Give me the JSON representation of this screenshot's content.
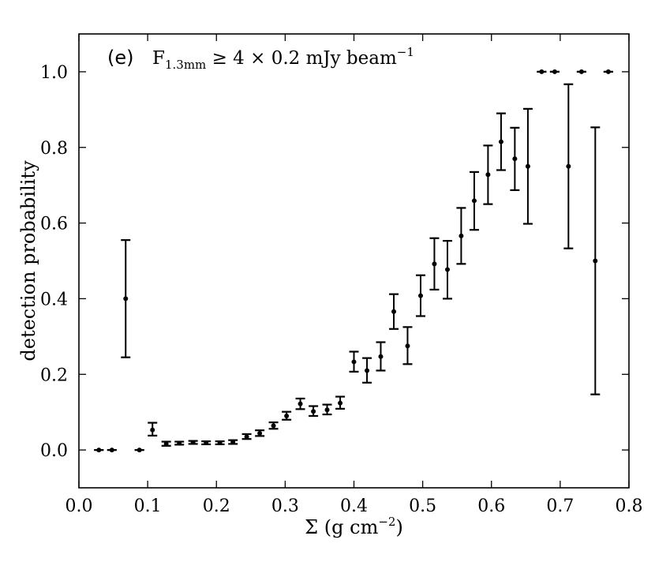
{
  "chart_data": {
    "type": "scatter",
    "panel_label": "(e)",
    "annotation": {
      "prefix": "F",
      "subscript": "1.3mm",
      "relation": " ≥ 4 × 0.2 mJy beam",
      "superscript": "−1"
    },
    "xlabel": "Σ (g cm",
    "xlabel_sup": "−2",
    "xlabel_suffix": ")",
    "ylabel": "detection probability",
    "xlim": [
      0.0,
      0.8
    ],
    "ylim": [
      -0.1,
      1.1
    ],
    "xticks": [
      0.0,
      0.1,
      0.2,
      0.3,
      0.4,
      0.5,
      0.6,
      0.7,
      0.8
    ],
    "xtick_labels": [
      "0.0",
      "0.1",
      "0.2",
      "0.3",
      "0.4",
      "0.5",
      "0.6",
      "0.7",
      "0.8"
    ],
    "yticks": [
      0.0,
      0.2,
      0.4,
      0.6,
      0.8,
      1.0
    ],
    "ytick_labels": [
      "0.0",
      "0.2",
      "0.4",
      "0.6",
      "0.8",
      "1.0"
    ],
    "grid": false,
    "points": [
      {
        "x": 0.029,
        "y": 0.0,
        "lo": 0.0,
        "hi": 0.0
      },
      {
        "x": 0.048,
        "y": 0.0,
        "lo": 0.0,
        "hi": 0.0
      },
      {
        "x": 0.068,
        "y": 0.4,
        "lo": 0.245,
        "hi": 0.555
      },
      {
        "x": 0.088,
        "y": 0.0,
        "lo": 0.0,
        "hi": 0.0
      },
      {
        "x": 0.107,
        "y": 0.053,
        "lo": 0.038,
        "hi": 0.072
      },
      {
        "x": 0.127,
        "y": 0.016,
        "lo": 0.011,
        "hi": 0.022
      },
      {
        "x": 0.146,
        "y": 0.018,
        "lo": 0.014,
        "hi": 0.022
      },
      {
        "x": 0.166,
        "y": 0.02,
        "lo": 0.016,
        "hi": 0.024
      },
      {
        "x": 0.185,
        "y": 0.019,
        "lo": 0.015,
        "hi": 0.023
      },
      {
        "x": 0.205,
        "y": 0.019,
        "lo": 0.015,
        "hi": 0.023
      },
      {
        "x": 0.224,
        "y": 0.021,
        "lo": 0.016,
        "hi": 0.026
      },
      {
        "x": 0.244,
        "y": 0.035,
        "lo": 0.029,
        "hi": 0.042
      },
      {
        "x": 0.263,
        "y": 0.044,
        "lo": 0.037,
        "hi": 0.052
      },
      {
        "x": 0.283,
        "y": 0.064,
        "lo": 0.056,
        "hi": 0.073
      },
      {
        "x": 0.302,
        "y": 0.09,
        "lo": 0.08,
        "hi": 0.101
      },
      {
        "x": 0.322,
        "y": 0.122,
        "lo": 0.108,
        "hi": 0.136
      },
      {
        "x": 0.341,
        "y": 0.102,
        "lo": 0.09,
        "hi": 0.116
      },
      {
        "x": 0.361,
        "y": 0.106,
        "lo": 0.094,
        "hi": 0.12
      },
      {
        "x": 0.38,
        "y": 0.124,
        "lo": 0.109,
        "hi": 0.141
      },
      {
        "x": 0.4,
        "y": 0.233,
        "lo": 0.207,
        "hi": 0.26
      },
      {
        "x": 0.419,
        "y": 0.21,
        "lo": 0.178,
        "hi": 0.243
      },
      {
        "x": 0.439,
        "y": 0.247,
        "lo": 0.21,
        "hi": 0.285
      },
      {
        "x": 0.458,
        "y": 0.366,
        "lo": 0.32,
        "hi": 0.412
      },
      {
        "x": 0.478,
        "y": 0.275,
        "lo": 0.227,
        "hi": 0.325
      },
      {
        "x": 0.497,
        "y": 0.408,
        "lo": 0.354,
        "hi": 0.462
      },
      {
        "x": 0.517,
        "y": 0.492,
        "lo": 0.424,
        "hi": 0.56
      },
      {
        "x": 0.536,
        "y": 0.477,
        "lo": 0.4,
        "hi": 0.553
      },
      {
        "x": 0.556,
        "y": 0.566,
        "lo": 0.492,
        "hi": 0.64
      },
      {
        "x": 0.575,
        "y": 0.659,
        "lo": 0.582,
        "hi": 0.735
      },
      {
        "x": 0.595,
        "y": 0.728,
        "lo": 0.65,
        "hi": 0.805
      },
      {
        "x": 0.614,
        "y": 0.815,
        "lo": 0.74,
        "hi": 0.89
      },
      {
        "x": 0.634,
        "y": 0.77,
        "lo": 0.687,
        "hi": 0.852
      },
      {
        "x": 0.653,
        "y": 0.75,
        "lo": 0.598,
        "hi": 0.902
      },
      {
        "x": 0.673,
        "y": 1.0,
        "lo": 1.0,
        "hi": 1.0
      },
      {
        "x": 0.692,
        "y": 1.0,
        "lo": 1.0,
        "hi": 1.0
      },
      {
        "x": 0.712,
        "y": 0.75,
        "lo": 0.533,
        "hi": 0.967
      },
      {
        "x": 0.731,
        "y": 1.0,
        "lo": 1.0,
        "hi": 1.0
      },
      {
        "x": 0.751,
        "y": 0.5,
        "lo": 0.147,
        "hi": 0.853
      },
      {
        "x": 0.77,
        "y": 1.0,
        "lo": 1.0,
        "hi": 1.0
      }
    ],
    "marker_color": "#000000"
  }
}
